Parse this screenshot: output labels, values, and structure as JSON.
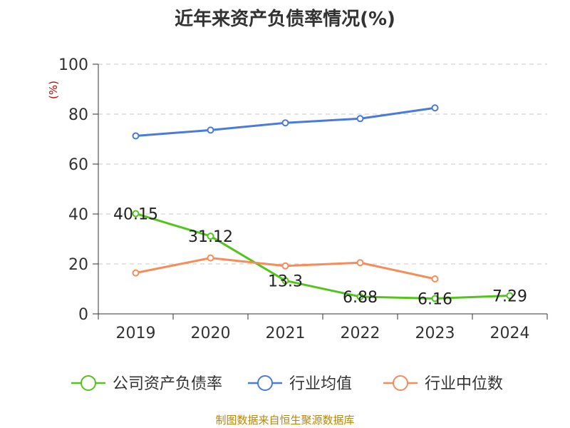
{
  "title": "近年来资产负债率情况(%)",
  "source": "制图数据来自恒生聚源数据库",
  "chart_data": {
    "type": "line",
    "title": "近年来资产负债率情况(%)",
    "ylabel": "(%)",
    "ylim": [
      0,
      100
    ],
    "yticks": [
      "0",
      "20",
      "40",
      "60",
      "80",
      "100"
    ],
    "categories": [
      "2019",
      "2020",
      "2021",
      "2022",
      "2023",
      "2024"
    ],
    "grid": true,
    "legend_position": "bottom",
    "series": [
      {
        "name": "公司资产负债率",
        "color": "#52c41a",
        "values": [
          40.15,
          31.12,
          13.3,
          6.88,
          6.16,
          7.29
        ],
        "labels": [
          "40.15",
          "31.12",
          "13.3",
          "6.88",
          "6.16",
          "7.29"
        ]
      },
      {
        "name": "行业均值",
        "color": "#4a7bd8",
        "values": [
          71.3,
          73.6,
          76.5,
          78.2,
          82.5,
          null
        ]
      },
      {
        "name": "行业中位数",
        "color": "#f58c5a",
        "values": [
          16.4,
          22.4,
          19.2,
          20.5,
          14.0,
          null
        ]
      }
    ]
  }
}
